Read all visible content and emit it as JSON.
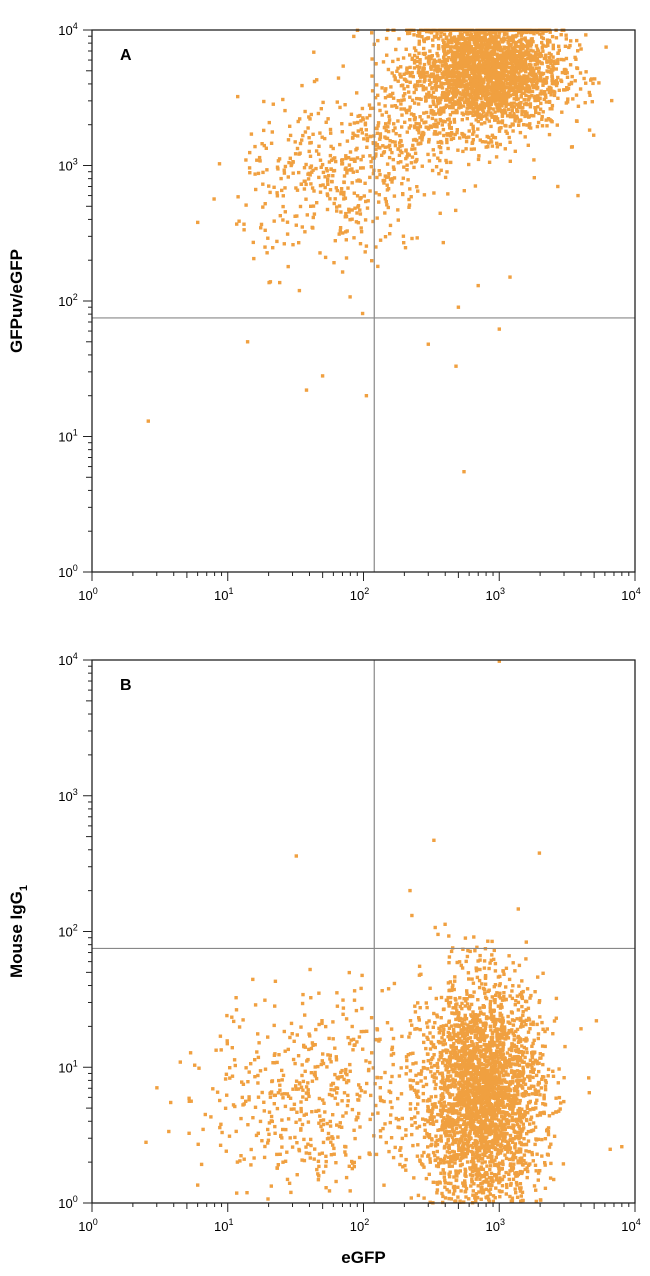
{
  "chart_data": [
    {
      "type": "scatter",
      "panel_label": "A",
      "xlabel": "",
      "ylabel": "GFPuv/eGFP",
      "x_scale": "log",
      "y_scale": "log",
      "xlim": [
        1,
        10000
      ],
      "ylim": [
        1,
        10000
      ],
      "x_ticks": [
        {
          "base": "10",
          "exp": "0"
        },
        {
          "base": "10",
          "exp": "1"
        },
        {
          "base": "10",
          "exp": "2"
        },
        {
          "base": "10",
          "exp": "3"
        },
        {
          "base": "10",
          "exp": "4"
        }
      ],
      "y_ticks": [
        {
          "base": "10",
          "exp": "0"
        },
        {
          "base": "10",
          "exp": "1"
        },
        {
          "base": "10",
          "exp": "2"
        },
        {
          "base": "10",
          "exp": "3"
        },
        {
          "base": "10",
          "exp": "4"
        }
      ],
      "quadrant_lines": {
        "x": 120,
        "y": 75
      },
      "grid": false,
      "point_color": "#f0a040",
      "populations": [
        {
          "x_center": 800,
          "y_center": 5000,
          "x_spread_log": 0.28,
          "y_spread_log": 0.22,
          "count": 2600
        },
        {
          "x_center": 60,
          "y_center": 700,
          "x_spread_log": 0.35,
          "y_spread_log": 0.3,
          "count": 380
        },
        {
          "x_center": 200,
          "y_center": 1800,
          "x_spread_log": 0.3,
          "y_spread_log": 0.2,
          "count": 260
        }
      ],
      "points": [
        {
          "x": 2.6,
          "y": 13
        },
        {
          "x": 105,
          "y": 20
        },
        {
          "x": 550,
          "y": 5.5
        },
        {
          "x": 38,
          "y": 22
        },
        {
          "x": 50,
          "y": 28
        },
        {
          "x": 14,
          "y": 50
        },
        {
          "x": 480,
          "y": 33
        },
        {
          "x": 300,
          "y": 48
        },
        {
          "x": 1000,
          "y": 62
        },
        {
          "x": 1200,
          "y": 150
        },
        {
          "x": 700,
          "y": 130
        },
        {
          "x": 3800,
          "y": 600
        },
        {
          "x": 2700,
          "y": 700
        },
        {
          "x": 1800,
          "y": 1100
        },
        {
          "x": 500,
          "y": 90
        }
      ]
    },
    {
      "type": "scatter",
      "panel_label": "B",
      "xlabel": "eGFP",
      "ylabel": "Mouse IgG",
      "ylabel_subscript": "1",
      "x_scale": "log",
      "y_scale": "log",
      "xlim": [
        1,
        10000
      ],
      "ylim": [
        1,
        10000
      ],
      "x_ticks": [
        {
          "base": "10",
          "exp": "0"
        },
        {
          "base": "10",
          "exp": "1"
        },
        {
          "base": "10",
          "exp": "2"
        },
        {
          "base": "10",
          "exp": "3"
        },
        {
          "base": "10",
          "exp": "4"
        }
      ],
      "y_ticks": [
        {
          "base": "10",
          "exp": "0"
        },
        {
          "base": "10",
          "exp": "1"
        },
        {
          "base": "10",
          "exp": "2"
        },
        {
          "base": "10",
          "exp": "3"
        },
        {
          "base": "10",
          "exp": "4"
        }
      ],
      "quadrant_lines": {
        "x": 120,
        "y": 75
      },
      "grid": false,
      "point_color": "#f0a040",
      "populations": [
        {
          "x_center": 750,
          "y_center": 6,
          "x_spread_log": 0.22,
          "y_spread_log": 0.42,
          "count": 3000
        },
        {
          "x_center": 45,
          "y_center": 6,
          "x_spread_log": 0.4,
          "y_spread_log": 0.38,
          "count": 520
        }
      ],
      "points": [
        {
          "x": 1000,
          "y": 9800
        },
        {
          "x": 330,
          "y": 470
        },
        {
          "x": 32,
          "y": 360
        },
        {
          "x": 220,
          "y": 200
        },
        {
          "x": 2.5,
          "y": 2.8
        },
        {
          "x": 8000,
          "y": 2.6
        },
        {
          "x": 5200,
          "y": 22
        },
        {
          "x": 3.8,
          "y": 5.5
        }
      ]
    }
  ]
}
